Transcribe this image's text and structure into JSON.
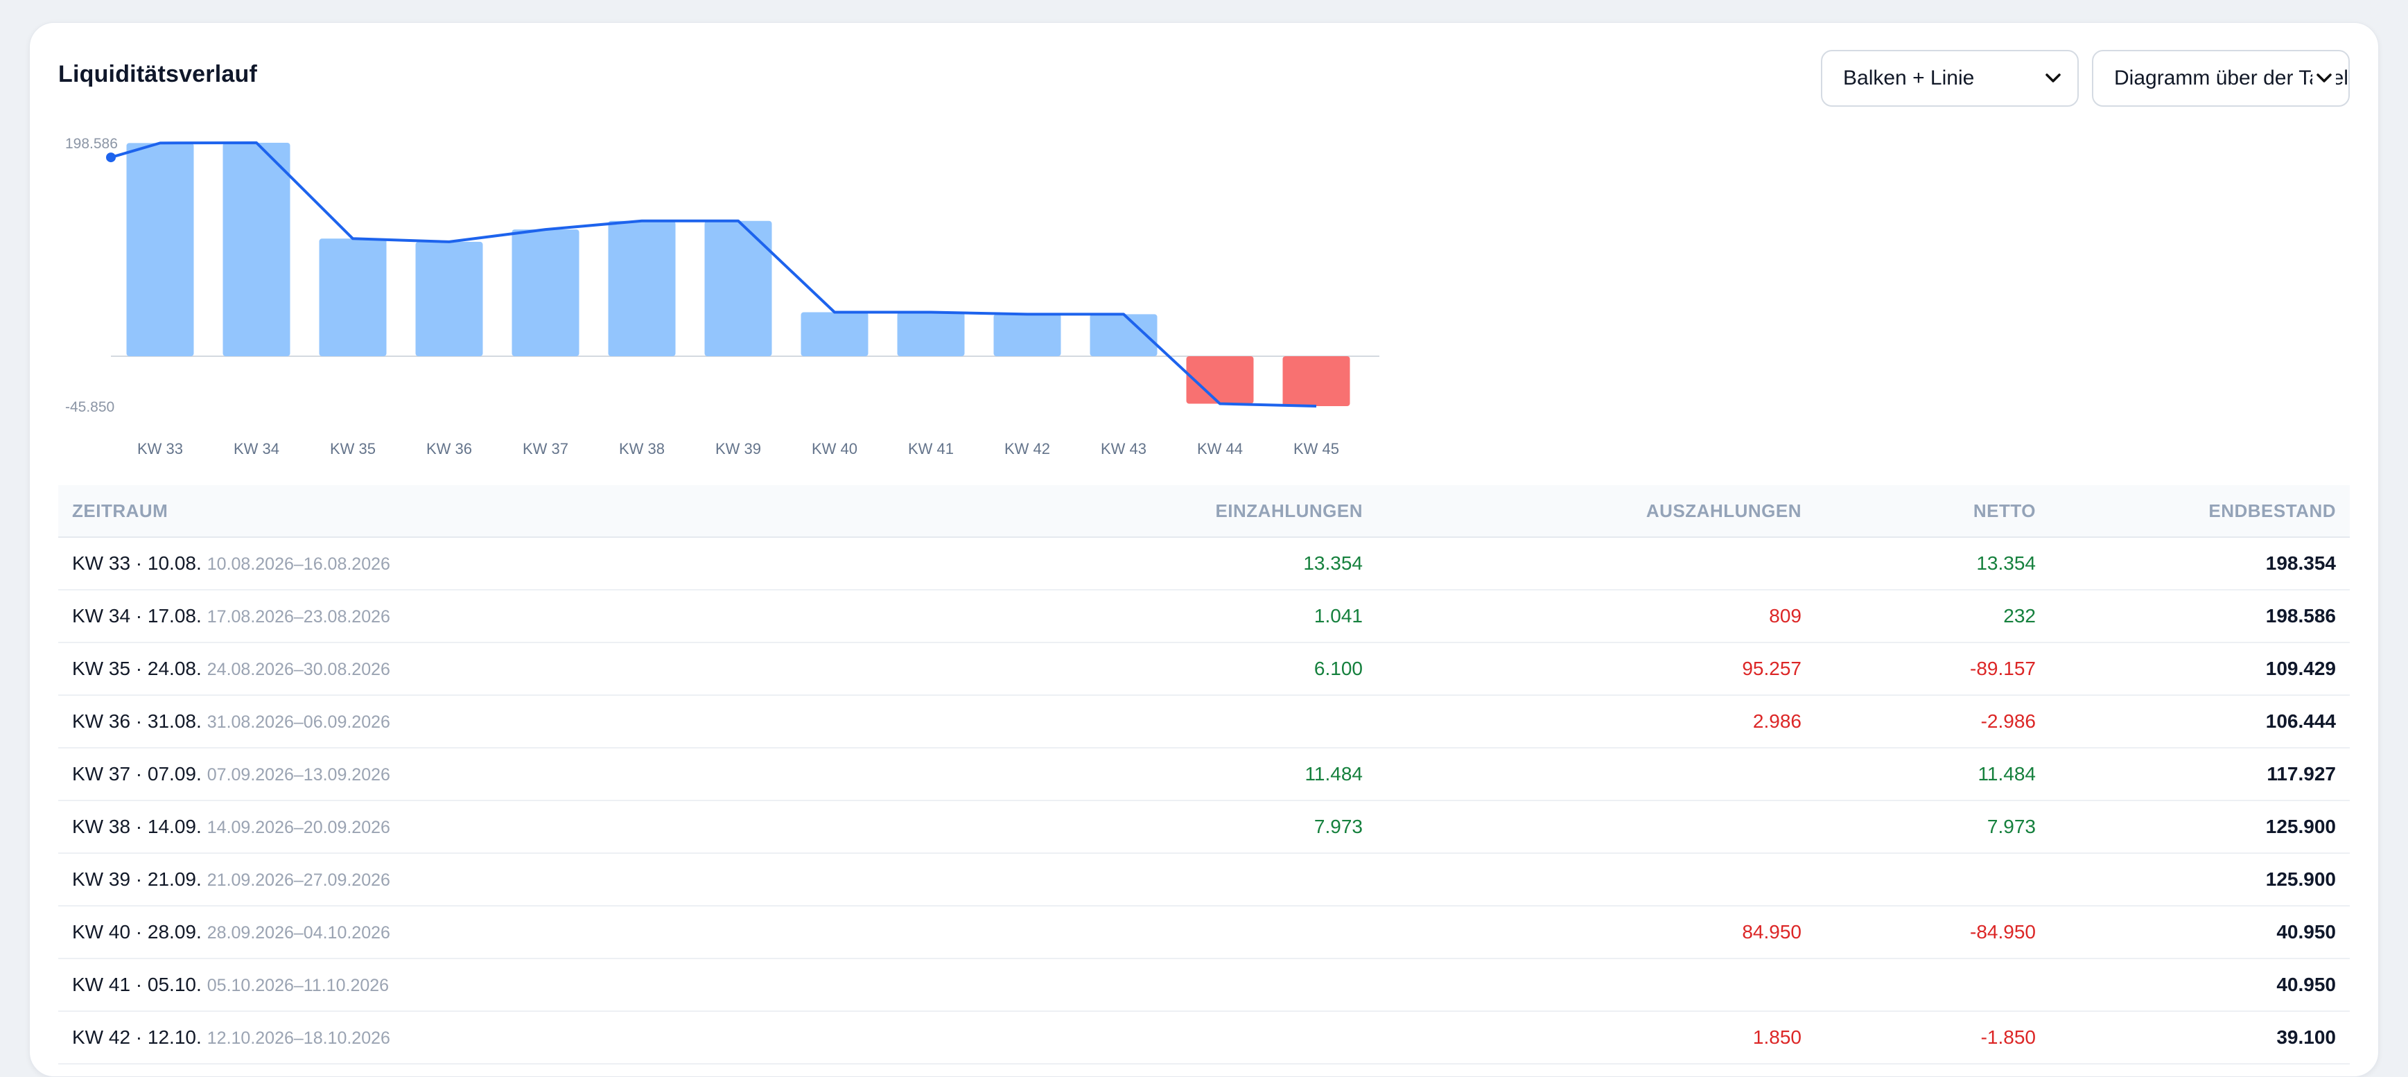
{
  "title": "Liquiditätsverlauf",
  "selects": {
    "chart_type": "Balken + Linie",
    "range": "Diagramm über der Tabelle"
  },
  "colors": {
    "bar_positive": "#93c5fd",
    "bar_negative": "#f87171",
    "line": "#1d63ed",
    "positive_text": "#15803d",
    "negative_text": "#dc2626"
  },
  "chart_data": {
    "type": "bar",
    "categories": [
      "KW 33",
      "KW 34",
      "KW 35",
      "KW 36",
      "KW 37",
      "KW 38",
      "KW 39",
      "KW 40",
      "KW 41",
      "KW 42",
      "KW 43",
      "KW 44",
      "KW 45"
    ],
    "values": [
      198354,
      198586,
      109429,
      106444,
      117927,
      125900,
      125900,
      40950,
      40950,
      39100,
      39100,
      -43650,
      -45850
    ],
    "line_start": 185000,
    "ymax_label": "198.586",
    "ymin_label": "-45.850",
    "ylim": [
      -45850,
      198586
    ]
  },
  "table": {
    "headers": {
      "period": "ZEITRAUM",
      "in": "EINZAHLUNGEN",
      "out": "AUSZAHLUNGEN",
      "net": "NETTO",
      "end": "ENDBESTAND"
    },
    "rows": [
      {
        "period": "KW 33 · 10.08.",
        "range": "10.08.2026–16.08.2026",
        "in": "13.354",
        "out": "",
        "net": "13.354",
        "net_sign": "pos",
        "end": "198.354"
      },
      {
        "period": "KW 34 · 17.08.",
        "range": "17.08.2026–23.08.2026",
        "in": "1.041",
        "out": "809",
        "net": "232",
        "net_sign": "pos",
        "end": "198.586"
      },
      {
        "period": "KW 35 · 24.08.",
        "range": "24.08.2026–30.08.2026",
        "in": "6.100",
        "out": "95.257",
        "net": "-89.157",
        "net_sign": "neg",
        "end": "109.429"
      },
      {
        "period": "KW 36 · 31.08.",
        "range": "31.08.2026–06.09.2026",
        "in": "",
        "out": "2.986",
        "net": "-2.986",
        "net_sign": "neg",
        "end": "106.444"
      },
      {
        "period": "KW 37 · 07.09.",
        "range": "07.09.2026–13.09.2026",
        "in": "11.484",
        "out": "",
        "net": "11.484",
        "net_sign": "pos",
        "end": "117.927"
      },
      {
        "period": "KW 38 · 14.09.",
        "range": "14.09.2026–20.09.2026",
        "in": "7.973",
        "out": "",
        "net": "7.973",
        "net_sign": "pos",
        "end": "125.900"
      },
      {
        "period": "KW 39 · 21.09.",
        "range": "21.09.2026–27.09.2026",
        "in": "",
        "out": "",
        "net": "",
        "net_sign": "pos",
        "end": "125.900"
      },
      {
        "period": "KW 40 · 28.09.",
        "range": "28.09.2026–04.10.2026",
        "in": "",
        "out": "84.950",
        "net": "-84.950",
        "net_sign": "neg",
        "end": "40.950"
      },
      {
        "period": "KW 41 · 05.10.",
        "range": "05.10.2026–11.10.2026",
        "in": "",
        "out": "",
        "net": "",
        "net_sign": "pos",
        "end": "40.950"
      },
      {
        "period": "KW 42 · 12.10.",
        "range": "12.10.2026–18.10.2026",
        "in": "",
        "out": "1.850",
        "net": "-1.850",
        "net_sign": "neg",
        "end": "39.100"
      }
    ]
  }
}
